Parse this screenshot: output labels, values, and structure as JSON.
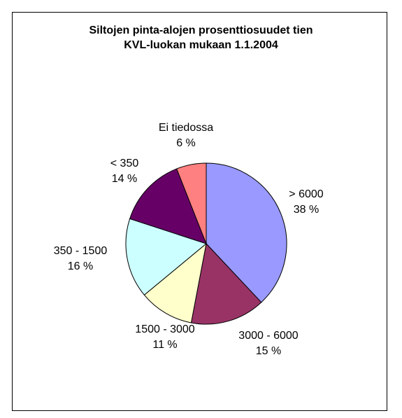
{
  "chart_data": {
    "type": "pie",
    "title_lines": [
      "Siltojen pinta-alojen prosenttiosuudet tien",
      "KVL-luokan mukaan 1.1.2004"
    ],
    "slices": [
      {
        "category": "> 6000",
        "pct_label": "38 %",
        "value": 38,
        "color": "#9999ff"
      },
      {
        "category": "3000 - 6000",
        "pct_label": "15 %",
        "value": 15,
        "color": "#993366"
      },
      {
        "category": "1500 - 3000",
        "pct_label": "11 %",
        "value": 11,
        "color": "#ffffcc"
      },
      {
        "category": "350 - 1500",
        "pct_label": "16 %",
        "value": 16,
        "color": "#ccffff"
      },
      {
        "category": "< 350",
        "pct_label": "14 %",
        "value": 14,
        "color": "#660066"
      },
      {
        "category": "Ei tiedossa",
        "pct_label": "6 %",
        "value": 6,
        "color": "#ff8080"
      }
    ],
    "start": "12 o'clock",
    "direction": "clockwise",
    "legend": "none"
  }
}
